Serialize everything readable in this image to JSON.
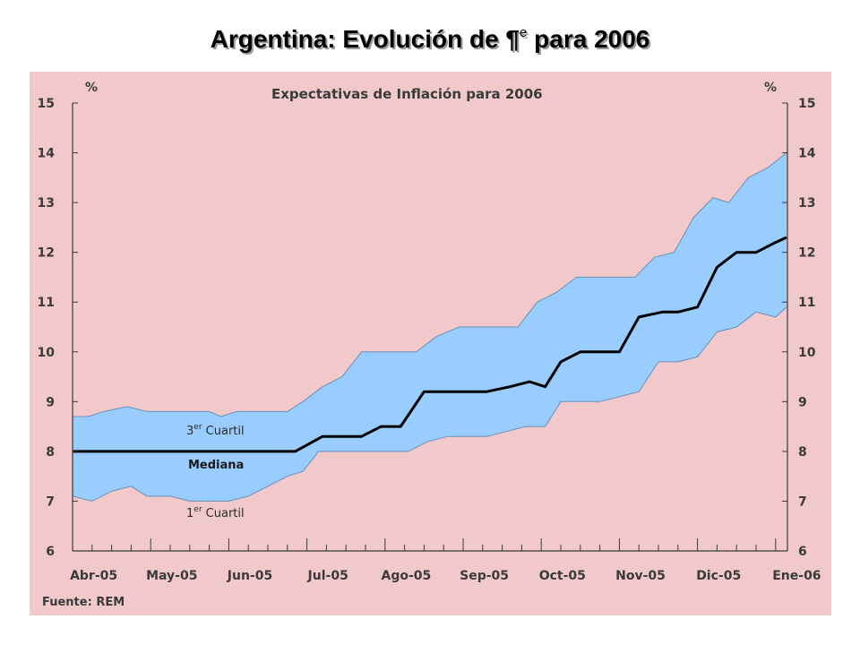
{
  "slide": {
    "title_main": "Argentina: Evolución de ¶",
    "title_sup": "e",
    "title_tail": " para 2006"
  },
  "colors": {
    "background": "#f2c9cb",
    "band": "#99ccff",
    "median": "#000000",
    "axis": "#3a3a3a"
  },
  "chart_data": {
    "type": "area",
    "title": "Expectativas de Inflación para 2006",
    "ylabel_left": "%",
    "ylabel_right": "%",
    "ylim": [
      6,
      15
    ],
    "yticks": [
      "6",
      "7",
      "8",
      "9",
      "10",
      "11",
      "12",
      "13",
      "14",
      "15"
    ],
    "x_categories": [
      "Abr-05",
      "May-05",
      "Jun-05",
      "Jul-05",
      "Ago-05",
      "Sep-05",
      "Oct-05",
      "Nov-05",
      "Dic-05",
      "Ene-06"
    ],
    "x_index_range": [
      0,
      9.14
    ],
    "source": "Fuente: REM",
    "annotations": {
      "q3_main": "3",
      "q3_sup": "er",
      "q3_word": " Cuartil",
      "median": "Mediana",
      "q1_main": "1",
      "q1_sup": "er",
      "q1_word": " Cuartil"
    },
    "series": [
      {
        "key": "q3",
        "x": [
          0,
          0.2,
          0.4,
          0.7,
          0.95,
          1.25,
          1.5,
          1.75,
          1.9,
          2.1,
          2.3,
          2.5,
          2.75,
          2.95,
          3.2,
          3.45,
          3.7,
          3.95,
          4.2,
          4.4,
          4.65,
          4.95,
          5.2,
          5.45,
          5.7,
          5.95,
          6.2,
          6.45,
          6.7,
          6.95,
          7.2,
          7.45,
          7.7,
          7.95,
          8.2,
          8.4,
          8.65,
          8.9,
          9.14
        ],
        "values": [
          8.7,
          8.7,
          8.8,
          8.9,
          8.8,
          8.8,
          8.8,
          8.8,
          8.7,
          8.8,
          8.8,
          8.8,
          8.8,
          9.0,
          9.3,
          9.5,
          10.0,
          10.0,
          10.0,
          10.0,
          10.3,
          10.5,
          10.5,
          10.5,
          10.5,
          11.0,
          11.2,
          11.5,
          11.5,
          11.5,
          11.5,
          11.9,
          12.0,
          12.7,
          13.1,
          13.0,
          13.5,
          13.7,
          14.0
        ]
      },
      {
        "key": "median",
        "x": [
          0,
          0.3,
          0.6,
          0.9,
          1.2,
          1.5,
          1.8,
          2.1,
          2.4,
          2.7,
          2.85,
          3.2,
          3.45,
          3.7,
          3.95,
          4.2,
          4.5,
          4.75,
          5.0,
          5.3,
          5.6,
          5.85,
          6.05,
          6.25,
          6.5,
          6.8,
          7.0,
          7.25,
          7.55,
          7.75,
          8.0,
          8.25,
          8.5,
          8.75,
          9.0,
          9.14
        ],
        "values": [
          8.0,
          8.0,
          8.0,
          8.0,
          8.0,
          8.0,
          8.0,
          8.0,
          8.0,
          8.0,
          8.0,
          8.3,
          8.3,
          8.3,
          8.5,
          8.5,
          9.2,
          9.2,
          9.2,
          9.2,
          9.3,
          9.4,
          9.3,
          9.8,
          10.0,
          10.0,
          10.0,
          10.7,
          10.8,
          10.8,
          10.9,
          11.7,
          12.0,
          12.0,
          12.2,
          12.3
        ]
      },
      {
        "key": "q1",
        "x": [
          0,
          0.25,
          0.5,
          0.75,
          0.95,
          1.25,
          1.5,
          1.75,
          2.0,
          2.25,
          2.5,
          2.75,
          2.95,
          3.15,
          3.35,
          3.55,
          3.8,
          4.05,
          4.3,
          4.55,
          4.8,
          5.05,
          5.3,
          5.55,
          5.8,
          6.05,
          6.25,
          6.5,
          6.75,
          7.0,
          7.25,
          7.5,
          7.75,
          8.0,
          8.25,
          8.5,
          8.75,
          9.0,
          9.14
        ],
        "values": [
          7.1,
          7.0,
          7.2,
          7.3,
          7.1,
          7.1,
          7.0,
          7.0,
          7.0,
          7.1,
          7.3,
          7.5,
          7.6,
          8.0,
          8.0,
          8.0,
          8.0,
          8.0,
          8.0,
          8.2,
          8.3,
          8.3,
          8.3,
          8.4,
          8.5,
          8.5,
          9.0,
          9.0,
          9.0,
          9.1,
          9.2,
          9.8,
          9.8,
          9.9,
          10.4,
          10.5,
          10.8,
          10.7,
          10.9
        ]
      }
    ]
  }
}
